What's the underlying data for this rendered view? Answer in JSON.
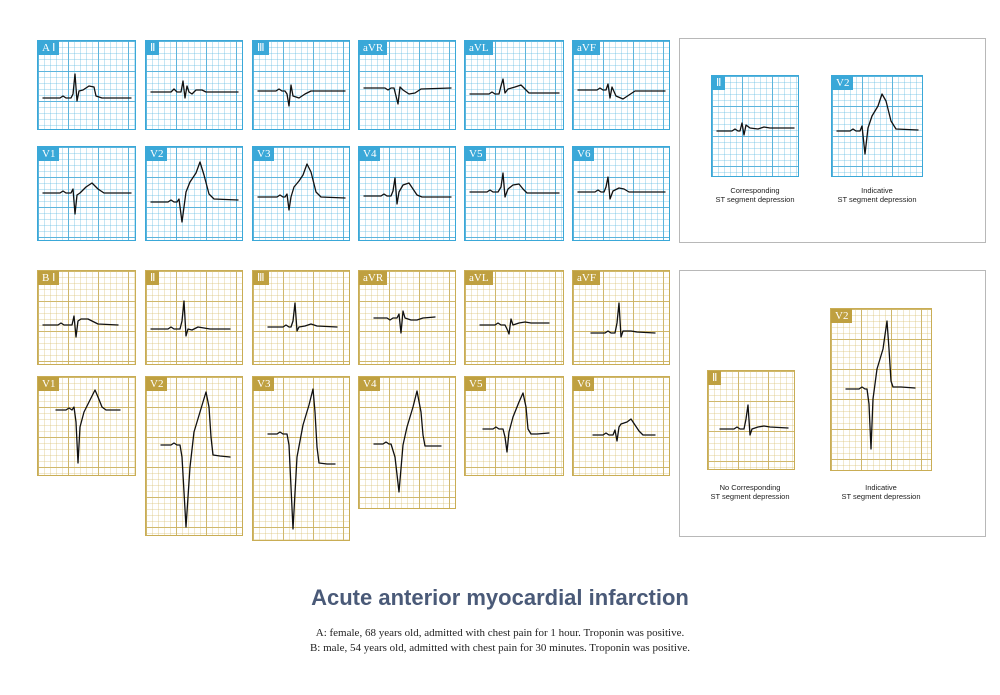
{
  "title": "Acute anterior myocardial infarction",
  "notes": {
    "a": "A: female, 68 years old, admitted with chest pain for 1 hour. Troponin was positive.",
    "b": "B: male, 54 years old, admitted with chest pain for 30 minutes. Troponin was positive."
  },
  "stock_id": "545391806",
  "group_a": {
    "leads": [
      "A  Ⅰ",
      "Ⅱ",
      "Ⅲ",
      "aVR",
      "aVL",
      "aVF",
      "V1",
      "V2",
      "V3",
      "V4",
      "V5",
      "V6"
    ],
    "callout": {
      "leads": [
        "Ⅱ",
        "V2"
      ],
      "captions": [
        "Corresponding\nST segment depression",
        "Indicative\nST segment depression"
      ]
    }
  },
  "group_b": {
    "leads": [
      "B  Ⅰ",
      "Ⅱ",
      "Ⅲ",
      "aVR",
      "aVL",
      "aVF",
      "V1",
      "V2",
      "V3",
      "V4",
      "V5",
      "V6"
    ],
    "callout": {
      "leads": [
        "Ⅱ",
        "V2"
      ],
      "captions": [
        "No Corresponding\nST segment depression",
        "Indicative\nST segment depression"
      ]
    }
  },
  "colors": {
    "blue_grid": "#3aa8d8",
    "gold_grid": "#c9ad55",
    "title": "#4a5a78"
  }
}
